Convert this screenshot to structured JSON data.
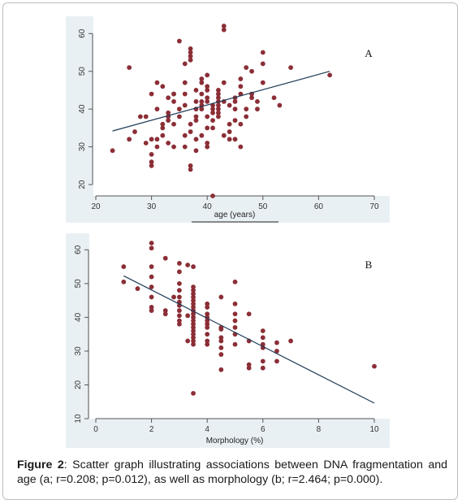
{
  "caption": {
    "label": "Figure 2",
    "text": ": Scatter graph illustrating associations between DNA fragmentation and age (a; r=0.208; p=0.012), as well as morphology (b; r=2.464; p=0.000)."
  },
  "colors": {
    "point": "#8b2e36",
    "line": "#1f3b57",
    "panel_bg": "#e9f0f4",
    "axis": "#555555"
  },
  "chart_data": [
    {
      "type": "scatter",
      "panel_label": "A",
      "xlabel": "age (years)",
      "ylabel": "",
      "xlim": [
        20,
        70
      ],
      "ylim": [
        17,
        62
      ],
      "xticks": [
        20,
        30,
        40,
        50,
        60,
        70
      ],
      "yticks": [
        20,
        30,
        40,
        50,
        60
      ],
      "grid": false,
      "trend_line": {
        "x": [
          23,
          62
        ],
        "y": [
          34.2,
          50.0
        ]
      },
      "points": [
        [
          23,
          29
        ],
        [
          26,
          51
        ],
        [
          26,
          32
        ],
        [
          27,
          34
        ],
        [
          28,
          38
        ],
        [
          29,
          31
        ],
        [
          29,
          38
        ],
        [
          30,
          32
        ],
        [
          30,
          28
        ],
        [
          30,
          25
        ],
        [
          30,
          26
        ],
        [
          31,
          30
        ],
        [
          31,
          32
        ],
        [
          32,
          33
        ],
        [
          32,
          35
        ],
        [
          33,
          37
        ],
        [
          33,
          38
        ],
        [
          33,
          39
        ],
        [
          34,
          42
        ],
        [
          34,
          44
        ],
        [
          34,
          36
        ],
        [
          35,
          38
        ],
        [
          35,
          40
        ],
        [
          36,
          41
        ],
        [
          36,
          44
        ],
        [
          36,
          47
        ],
        [
          36,
          52
        ],
        [
          37,
          53
        ],
        [
          37,
          54
        ],
        [
          37,
          55
        ],
        [
          37,
          56
        ],
        [
          37,
          36
        ],
        [
          37,
          34
        ],
        [
          38,
          40
        ],
        [
          38,
          37
        ],
        [
          38,
          32
        ],
        [
          38,
          45
        ],
        [
          38,
          38
        ],
        [
          39,
          40
        ],
        [
          39,
          41
        ],
        [
          39,
          42
        ],
        [
          39,
          44
        ],
        [
          39,
          47
        ],
        [
          39,
          48
        ],
        [
          40,
          30
        ],
        [
          40,
          35
        ],
        [
          40,
          38
        ],
        [
          40,
          42
        ],
        [
          40,
          43
        ],
        [
          40,
          45
        ],
        [
          40,
          46
        ],
        [
          40,
          49
        ],
        [
          41,
          35
        ],
        [
          41,
          37
        ],
        [
          41,
          40
        ],
        [
          41,
          41
        ],
        [
          42,
          39
        ],
        [
          42,
          40
        ],
        [
          42,
          41
        ],
        [
          42,
          42
        ],
        [
          42,
          43
        ],
        [
          42,
          44
        ],
        [
          42,
          45
        ],
        [
          43,
          47
        ],
        [
          43,
          61
        ],
        [
          43,
          62
        ],
        [
          43,
          33
        ],
        [
          44,
          34
        ],
        [
          44,
          36
        ],
        [
          44,
          41
        ],
        [
          45,
          37
        ],
        [
          45,
          40
        ],
        [
          45,
          42
        ],
        [
          45,
          43
        ],
        [
          46,
          44
        ],
        [
          46,
          46
        ],
        [
          46,
          48
        ],
        [
          47,
          51
        ],
        [
          48,
          50
        ],
        [
          48,
          43
        ],
        [
          49,
          42
        ],
        [
          50,
          55
        ],
        [
          50,
          52
        ],
        [
          52,
          43
        ],
        [
          53,
          41
        ],
        [
          55,
          51
        ],
        [
          62,
          49
        ],
        [
          30,
          44
        ],
        [
          31,
          47
        ],
        [
          32,
          46
        ],
        [
          32,
          36
        ],
        [
          33,
          31
        ],
        [
          34,
          30
        ],
        [
          35,
          58
        ],
        [
          36,
          33
        ],
        [
          37,
          24
        ],
        [
          37,
          25
        ],
        [
          38,
          42
        ],
        [
          41,
          17
        ],
        [
          41,
          39
        ],
        [
          42,
          38
        ],
        [
          44,
          32
        ],
        [
          45,
          32
        ],
        [
          46,
          30
        ],
        [
          47,
          38
        ],
        [
          48,
          44
        ],
        [
          49,
          40
        ],
        [
          31,
          40
        ],
        [
          33,
          43
        ],
        [
          34,
          44
        ],
        [
          36,
          30
        ],
        [
          38,
          29
        ],
        [
          39,
          33
        ],
        [
          40,
          31
        ],
        [
          43,
          42
        ],
        [
          46,
          36
        ],
        [
          47,
          40
        ],
        [
          50,
          47
        ]
      ]
    },
    {
      "type": "scatter",
      "panel_label": "B",
      "xlabel": "Morphology (%)",
      "ylabel": "",
      "xlim": [
        0,
        10
      ],
      "ylim": [
        10,
        62
      ],
      "xticks": [
        0,
        2,
        4,
        6,
        8,
        10
      ],
      "yticks": [
        10,
        20,
        30,
        40,
        50,
        60
      ],
      "grid": false,
      "trend_line": {
        "x": [
          1,
          10
        ],
        "y": [
          52.3,
          14.6
        ]
      },
      "points": [
        [
          1,
          55
        ],
        [
          1,
          50.5
        ],
        [
          1.5,
          48.5
        ],
        [
          2,
          62
        ],
        [
          2,
          60.5
        ],
        [
          2,
          55
        ],
        [
          2,
          52
        ],
        [
          2,
          49
        ],
        [
          2,
          46
        ],
        [
          2,
          43
        ],
        [
          2,
          42
        ],
        [
          2.5,
          57.5
        ],
        [
          2.5,
          42
        ],
        [
          2.5,
          41
        ],
        [
          2.8,
          46
        ],
        [
          3,
          56
        ],
        [
          3,
          53.5
        ],
        [
          3,
          50
        ],
        [
          3,
          48
        ],
        [
          3,
          46
        ],
        [
          3,
          44.5
        ],
        [
          3,
          43.5
        ],
        [
          3,
          42
        ],
        [
          3,
          40.5
        ],
        [
          3,
          39
        ],
        [
          3,
          38
        ],
        [
          3.3,
          55.5
        ],
        [
          3.3,
          33
        ],
        [
          3.3,
          40.5
        ],
        [
          3.5,
          55
        ],
        [
          3.5,
          49
        ],
        [
          3.5,
          48
        ],
        [
          3.5,
          47
        ],
        [
          3.5,
          46
        ],
        [
          3.5,
          45
        ],
        [
          3.5,
          44
        ],
        [
          3.5,
          43
        ],
        [
          3.5,
          42
        ],
        [
          3.5,
          41
        ],
        [
          3.5,
          40
        ],
        [
          3.5,
          39
        ],
        [
          3.5,
          38
        ],
        [
          3.5,
          37
        ],
        [
          3.5,
          36
        ],
        [
          3.5,
          35
        ],
        [
          3.5,
          34
        ],
        [
          3.5,
          33
        ],
        [
          3.5,
          32
        ],
        [
          3.5,
          17.5
        ],
        [
          4,
          44
        ],
        [
          4,
          43
        ],
        [
          4,
          41
        ],
        [
          4,
          40
        ],
        [
          4,
          39
        ],
        [
          4,
          38
        ],
        [
          4,
          37
        ],
        [
          4,
          35
        ],
        [
          4,
          33
        ],
        [
          4,
          32
        ],
        [
          4.5,
          46
        ],
        [
          4.5,
          37
        ],
        [
          4.5,
          36.5
        ],
        [
          4.5,
          34
        ],
        [
          4.5,
          33
        ],
        [
          4.5,
          31
        ],
        [
          4.5,
          29
        ],
        [
          4.5,
          24.5
        ],
        [
          5,
          50.5
        ],
        [
          5,
          44
        ],
        [
          5,
          41
        ],
        [
          5,
          39
        ],
        [
          5,
          37
        ],
        [
          5,
          35
        ],
        [
          5,
          32
        ],
        [
          5.5,
          41
        ],
        [
          5.5,
          33
        ],
        [
          5.5,
          25
        ],
        [
          5.5,
          26
        ],
        [
          6,
          36
        ],
        [
          6,
          34
        ],
        [
          6,
          32
        ],
        [
          6,
          31
        ],
        [
          6,
          27
        ],
        [
          6,
          25
        ],
        [
          6.5,
          32.5
        ],
        [
          6.5,
          30
        ],
        [
          6.5,
          27
        ],
        [
          7,
          33
        ],
        [
          10,
          25.5
        ]
      ]
    }
  ]
}
